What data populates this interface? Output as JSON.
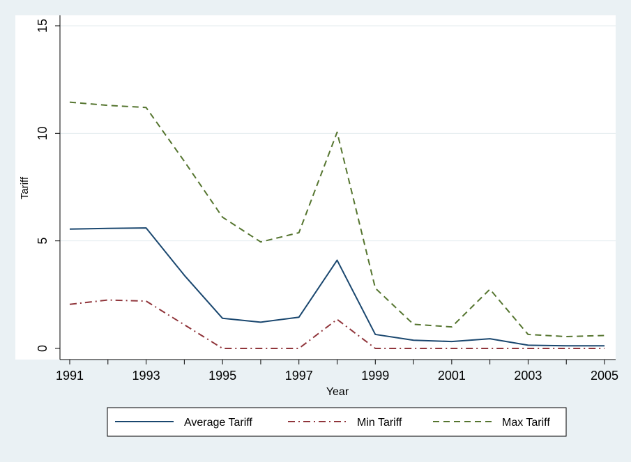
{
  "chart_data": {
    "type": "line",
    "xlabel": "Year",
    "ylabel": "Tariff",
    "xlim": [
      1991,
      2005
    ],
    "ylim": [
      0,
      15
    ],
    "x_ticks": [
      "1991",
      "1993",
      "1995",
      "1997",
      "1999",
      "2001",
      "2003",
      "2005"
    ],
    "y_ticks": [
      "0",
      "5",
      "10",
      "15"
    ],
    "grid": true,
    "legend_position": "bottom",
    "x": [
      1991,
      1992,
      1993,
      1994,
      1995,
      1996,
      1997,
      1998,
      1999,
      2000,
      2001,
      2002,
      2003,
      2004,
      2005
    ],
    "series": [
      {
        "name": "Average Tariff",
        "color": "#1a476f",
        "dash": "solid",
        "values": [
          5.55,
          5.58,
          5.6,
          3.4,
          1.4,
          1.22,
          1.45,
          4.1,
          0.65,
          0.38,
          0.32,
          0.45,
          0.15,
          0.12,
          0.12
        ]
      },
      {
        "name": "Min Tariff",
        "color": "#90353b",
        "dash": "dashdot",
        "values": [
          2.05,
          2.25,
          2.2,
          1.1,
          0.0,
          0.0,
          0.0,
          1.35,
          0.0,
          0.0,
          0.0,
          0.0,
          0.0,
          0.0,
          0.0
        ]
      },
      {
        "name": "Max Tariff",
        "color": "#55752f",
        "dash": "dash",
        "values": [
          11.45,
          11.3,
          11.2,
          8.7,
          6.1,
          4.95,
          5.38,
          10.05,
          2.8,
          1.12,
          1.0,
          2.75,
          0.65,
          0.55,
          0.6
        ]
      }
    ]
  }
}
